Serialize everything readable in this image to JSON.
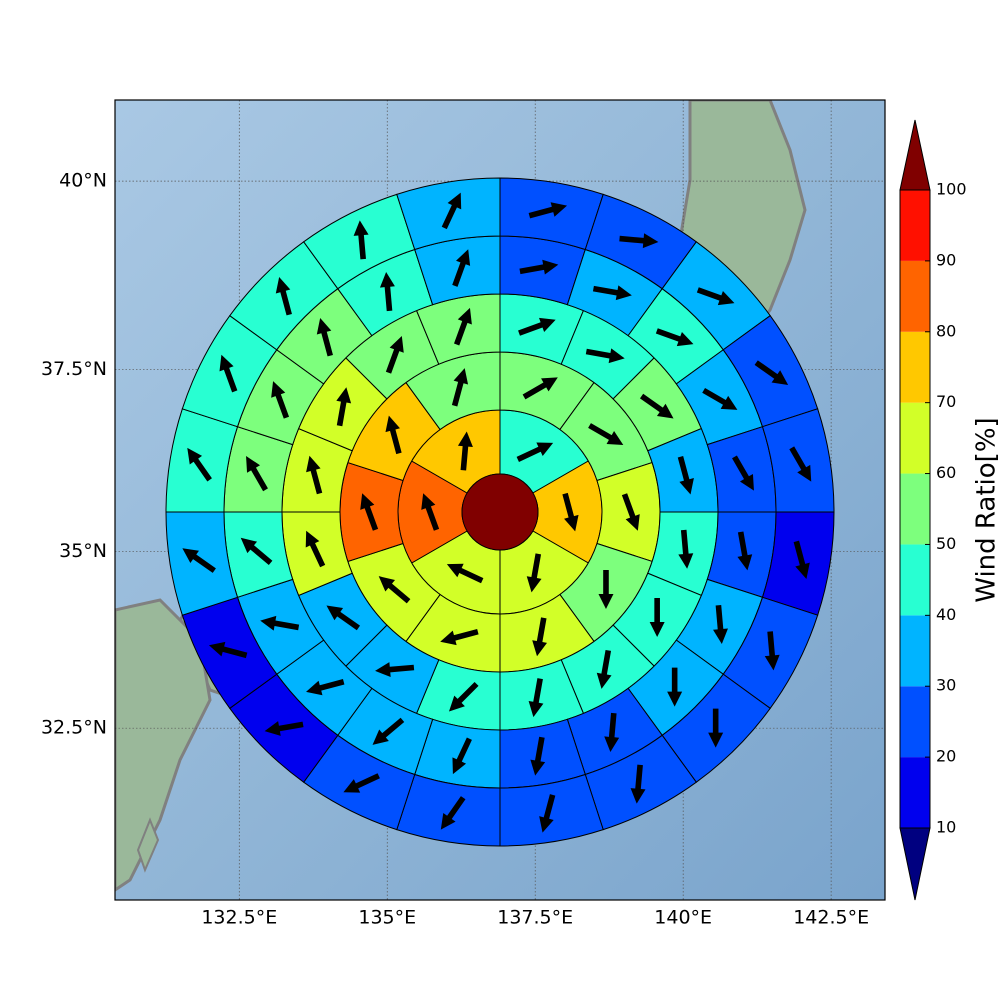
{
  "chart_data": {
    "type": "polar",
    "xlim": [
      130.4,
      143.41
    ],
    "ylim": [
      30.0,
      41.05
    ],
    "xticks": [
      {
        "value": 132.5,
        "label": "132.5°E"
      },
      {
        "value": 135,
        "label": "135°E"
      },
      {
        "value": 137.5,
        "label": "137.5°E"
      },
      {
        "value": 140,
        "label": "140°E"
      },
      {
        "value": 142.5,
        "label": "142.5°E"
      }
    ],
    "yticks": [
      {
        "value": 32.5,
        "label": "32.5°N"
      },
      {
        "value": 35,
        "label": "35°N"
      },
      {
        "value": 37.5,
        "label": "37.5°N"
      },
      {
        "value": 40,
        "label": "40°N"
      }
    ],
    "grid": true,
    "center_value": 100,
    "rings": [
      {
        "values": [
          45,
          75,
          65,
          65,
          85,
          75
        ],
        "directions": [
          65,
          165,
          190,
          295,
          340,
          5
        ]
      },
      {
        "values": [
          55,
          55,
          65,
          55,
          65,
          65,
          65,
          85,
          75,
          55
        ],
        "directions": [
          60,
          120,
          160,
          180,
          190,
          255,
          310,
          340,
          345,
          15
        ]
      },
      {
        "values": [
          45,
          45,
          55,
          35,
          45,
          45,
          45,
          45,
          45,
          35,
          35,
          65,
          65,
          65,
          55,
          55
        ],
        "directions": [
          70,
          100,
          125,
          165,
          175,
          180,
          190,
          190,
          225,
          265,
          305,
          335,
          345,
          10,
          20,
          20
        ]
      },
      {
        "values": [
          25,
          35,
          45,
          35,
          25,
          25,
          35,
          35,
          25,
          25,
          35,
          35,
          35,
          35,
          45,
          55,
          55,
          55,
          45,
          35
        ],
        "directions": [
          80,
          100,
          110,
          120,
          150,
          170,
          175,
          180,
          185,
          190,
          205,
          230,
          255,
          280,
          310,
          330,
          340,
          345,
          355,
          20
        ]
      },
      {
        "values": [
          25,
          25,
          35,
          25,
          25,
          15,
          25,
          25,
          25,
          25,
          25,
          25,
          15,
          15,
          35,
          45,
          45,
          45,
          45,
          35
        ],
        "directions": [
          75,
          95,
          110,
          125,
          150,
          165,
          175,
          180,
          185,
          195,
          215,
          245,
          260,
          285,
          305,
          325,
          340,
          345,
          355,
          25
        ]
      }
    ],
    "colorbar": {
      "label": "Wind Ratio[%]",
      "ticks": [
        10,
        20,
        30,
        40,
        50,
        60,
        70,
        80,
        90,
        100
      ],
      "colors": [
        "#0000ee",
        "#0050ff",
        "#00b4ff",
        "#28ffd2",
        "#7dff7d",
        "#d2ff28",
        "#ffc800",
        "#ff6400",
        "#ff1000"
      ],
      "over_color": "#800000",
      "under_color": "#000080"
    },
    "arrow_color": "#000000"
  }
}
